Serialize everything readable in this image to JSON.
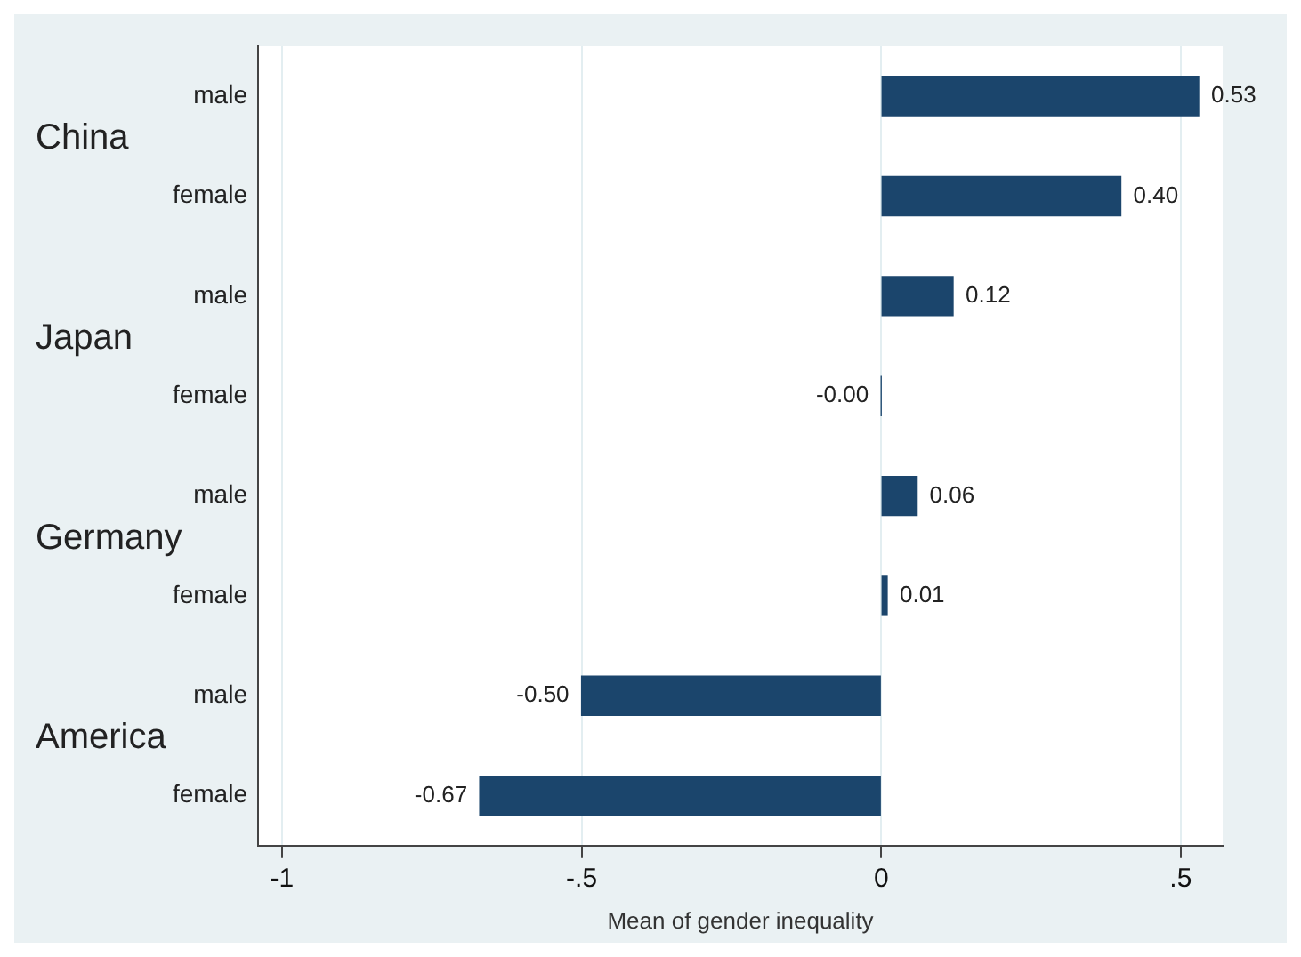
{
  "chart_data": {
    "type": "bar",
    "orientation": "horizontal",
    "xlabel": "Mean of gender inequality",
    "categories": [
      "male",
      "female",
      "male",
      "female",
      "male",
      "female",
      "male",
      "female"
    ],
    "values": [
      0.53,
      0.4,
      0.12,
      0,
      0.06,
      0.01,
      -0.5,
      -0.67
    ],
    "value_labels": [
      "0.53",
      "0.40",
      "0.12",
      "-0.00",
      "0.06",
      "0.01",
      "-0.50",
      "-0.67"
    ],
    "color": "#1b456c",
    "annotations": [
      "China",
      "Japan",
      "Germany",
      "America"
    ],
    "xlim": [
      -1.04,
      0.57
    ],
    "xticks": [
      {
        "value": -1,
        "label": "-1"
      },
      {
        "value": -0.5,
        "label": "-.5"
      },
      0,
      {
        "value": 0.5,
        "label": ".5"
      }
    ],
    "grid": "x",
    "legend": false
  }
}
